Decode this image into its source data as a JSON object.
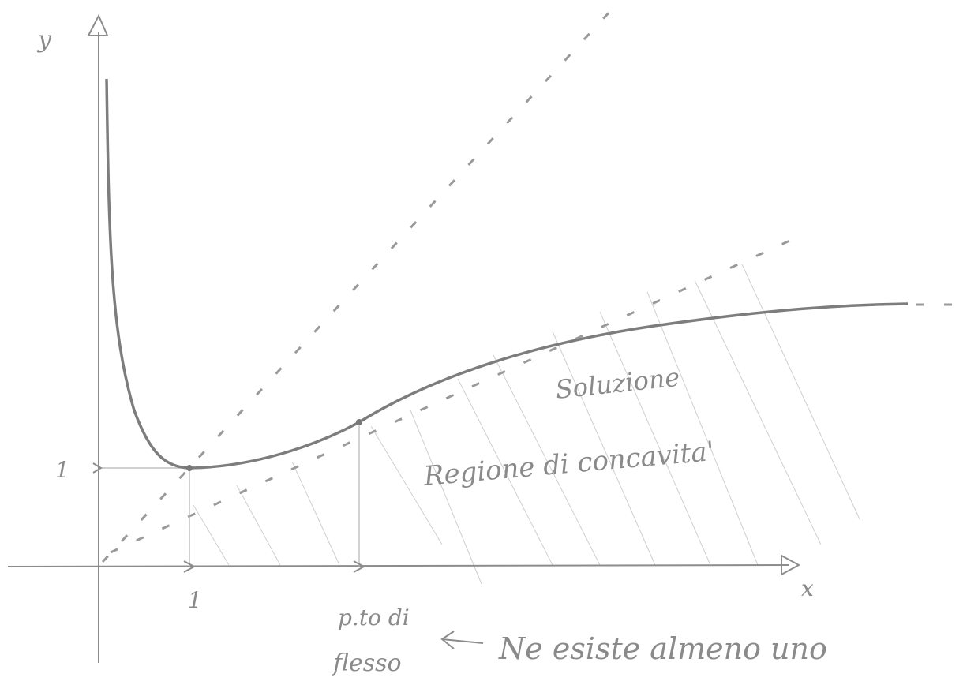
{
  "axes": {
    "y_label": "y",
    "x_label": "x",
    "y_tick": "1",
    "x_tick": "1"
  },
  "annotations": {
    "solution": "Soluzione",
    "region": "Regione di concavita'",
    "inflection_line1": "p.to di",
    "inflection_line2": "flesso",
    "note": "Ne esiste almeno uno"
  }
}
